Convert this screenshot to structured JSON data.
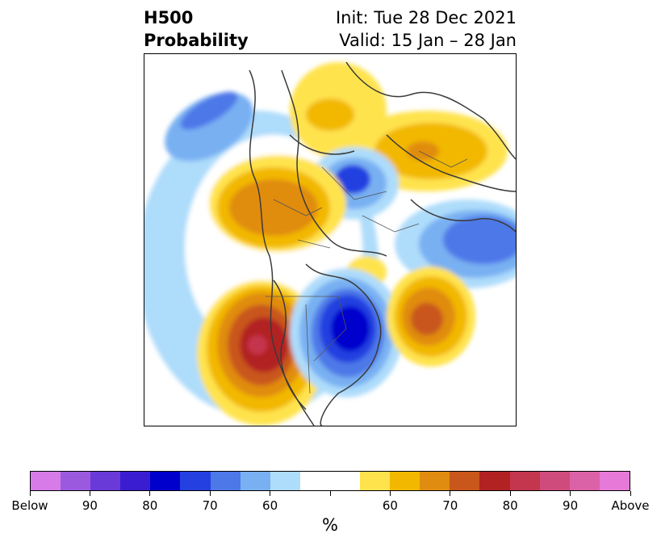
{
  "title": {
    "left_line1": "H500",
    "left_line2": "Probability",
    "right_line1": "Init: Tue 28 Dec 2021",
    "right_line2": "Valid: 15 Jan – 28 Jan"
  },
  "colorbar": {
    "unit": "%",
    "colors": [
      "#d67be8",
      "#9b59e0",
      "#6a3ad8",
      "#3a1dd1",
      "#0000cd",
      "#2440e0",
      "#4d78e8",
      "#78b0f2",
      "#aedcfb",
      "#ffffff",
      "#ffffff",
      "#ffe34d",
      "#f2b800",
      "#e08c10",
      "#c9561b",
      "#b22222",
      "#c4364d",
      "#cf4b7c",
      "#dc62a8",
      "#e779d8"
    ],
    "tick_labels": [
      "Below",
      "90",
      "80",
      "70",
      "60",
      "",
      "60",
      "70",
      "80",
      "90",
      "Above"
    ]
  }
}
